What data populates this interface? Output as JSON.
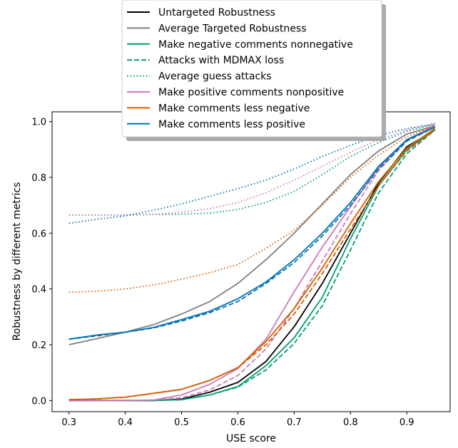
{
  "chart_data": {
    "type": "line",
    "xlabel": "USE score",
    "ylabel": "Robustness by different metrics",
    "xlim": [
      0.27,
      0.977
    ],
    "ylim": [
      -0.04,
      1.035
    ],
    "xticks": [
      "0.3",
      "0.4",
      "0.5",
      "0.6",
      "0.7",
      "0.8",
      "0.9"
    ],
    "yticks": [
      "0.0",
      "0.2",
      "0.4",
      "0.6",
      "0.8",
      "1.0"
    ],
    "grid": false,
    "legend_position": "top-center",
    "x": [
      0.3,
      0.35,
      0.4,
      0.45,
      0.5,
      0.55,
      0.6,
      0.65,
      0.7,
      0.75,
      0.8,
      0.85,
      0.9,
      0.95
    ],
    "series": [
      {
        "name": "Untargeted Robustness",
        "color": "#000000",
        "dash": "solid",
        "values": [
          0.0,
          0.0,
          0.0,
          0.0,
          0.005,
          0.03,
          0.065,
          0.14,
          0.265,
          0.42,
          0.6,
          0.78,
          0.91,
          0.97
        ]
      },
      {
        "name": "Average Targeted Robustness",
        "color": "#808080",
        "dash": "solid",
        "values": [
          0.2,
          0.222,
          0.245,
          0.272,
          0.31,
          0.355,
          0.42,
          0.505,
          0.6,
          0.705,
          0.81,
          0.895,
          0.955,
          0.985
        ]
      },
      {
        "name": "Make negative comments nonnegative",
        "color": "#029e73",
        "dash": "solid",
        "values": [
          0.0,
          0.0,
          0.0,
          0.0,
          0.003,
          0.02,
          0.05,
          0.125,
          0.225,
          0.37,
          0.58,
          0.77,
          0.9,
          0.97
        ]
      },
      {
        "name": "Attacks with MDMAX loss",
        "color": "#029e73",
        "dash": "dashed",
        "values": [
          0.0,
          0.0,
          0.0,
          0.0,
          0.003,
          0.02,
          0.048,
          0.11,
          0.205,
          0.34,
          0.54,
          0.745,
          0.885,
          0.97
        ]
      },
      {
        "name": "Average guess attacks",
        "color": "#029e73",
        "dash": "dotted",
        "values": [
          0.665,
          0.665,
          0.665,
          0.667,
          0.668,
          0.672,
          0.685,
          0.71,
          0.75,
          0.81,
          0.875,
          0.925,
          0.965,
          0.99
        ]
      },
      {
        "name": "Make positive comments nonpositive",
        "color": "#cc78bc",
        "dash": "solid",
        "values": [
          0.0,
          0.0,
          0.0,
          0.002,
          0.02,
          0.058,
          0.115,
          0.22,
          0.39,
          0.55,
          0.695,
          0.835,
          0.935,
          0.985
        ]
      },
      {
        "name": "",
        "color": "#cc78bc",
        "dash": "dashed",
        "values": [
          0.0,
          0.0,
          0.0,
          0.002,
          0.01,
          0.038,
          0.09,
          0.185,
          0.33,
          0.5,
          0.67,
          0.825,
          0.93,
          0.985
        ]
      },
      {
        "name": "",
        "color": "#cc78bc",
        "dash": "dotted",
        "values": [
          0.665,
          0.665,
          0.665,
          0.668,
          0.675,
          0.688,
          0.71,
          0.745,
          0.79,
          0.84,
          0.89,
          0.935,
          0.97,
          0.995
        ]
      },
      {
        "name": "Make comments less negative",
        "color": "#d55e00",
        "dash": "solid",
        "values": [
          0.003,
          0.006,
          0.012,
          0.026,
          0.04,
          0.072,
          0.118,
          0.212,
          0.33,
          0.475,
          0.635,
          0.785,
          0.905,
          0.975
        ]
      },
      {
        "name": "",
        "color": "#d55e00",
        "dash": "dashed",
        "values": [
          0.003,
          0.006,
          0.012,
          0.026,
          0.04,
          0.072,
          0.118,
          0.2,
          0.31,
          0.455,
          0.615,
          0.77,
          0.895,
          0.97
        ]
      },
      {
        "name": "",
        "color": "#d55e00",
        "dash": "dotted",
        "values": [
          0.388,
          0.392,
          0.4,
          0.414,
          0.435,
          0.458,
          0.488,
          0.545,
          0.61,
          0.7,
          0.8,
          0.88,
          0.945,
          0.985
        ]
      },
      {
        "name": "Make comments less positive",
        "color": "#0173b2",
        "dash": "solid",
        "values": [
          0.22,
          0.235,
          0.245,
          0.262,
          0.29,
          0.32,
          0.365,
          0.425,
          0.505,
          0.6,
          0.71,
          0.84,
          0.935,
          0.98
        ]
      },
      {
        "name": "",
        "color": "#0173b2",
        "dash": "dashed",
        "values": [
          0.22,
          0.232,
          0.245,
          0.26,
          0.285,
          0.315,
          0.355,
          0.42,
          0.495,
          0.59,
          0.7,
          0.83,
          0.93,
          0.98
        ]
      },
      {
        "name": "",
        "color": "#0173b2",
        "dash": "dotted",
        "values": [
          0.635,
          0.65,
          0.662,
          0.682,
          0.705,
          0.732,
          0.76,
          0.79,
          0.83,
          0.875,
          0.915,
          0.95,
          0.975,
          0.99
        ]
      }
    ],
    "legend": [
      {
        "label": "Untargeted Robustness",
        "color": "#000000",
        "dash": "solid"
      },
      {
        "label": "Average Targeted Robustness",
        "color": "#808080",
        "dash": "solid"
      },
      {
        "label": "Make negative comments nonnegative",
        "color": "#029e73",
        "dash": "solid"
      },
      {
        "label": "Attacks with MDMAX loss",
        "color": "#029e73",
        "dash": "dashed"
      },
      {
        "label": "Average guess attacks",
        "color": "#029e73",
        "dash": "dotted"
      },
      {
        "label": "Make positive comments nonpositive",
        "color": "#cc78bc",
        "dash": "solid"
      },
      {
        "label": "Make comments less negative",
        "color": "#d55e00",
        "dash": "solid"
      },
      {
        "label": "Make comments less positive",
        "color": "#0173b2",
        "dash": "solid"
      }
    ]
  }
}
